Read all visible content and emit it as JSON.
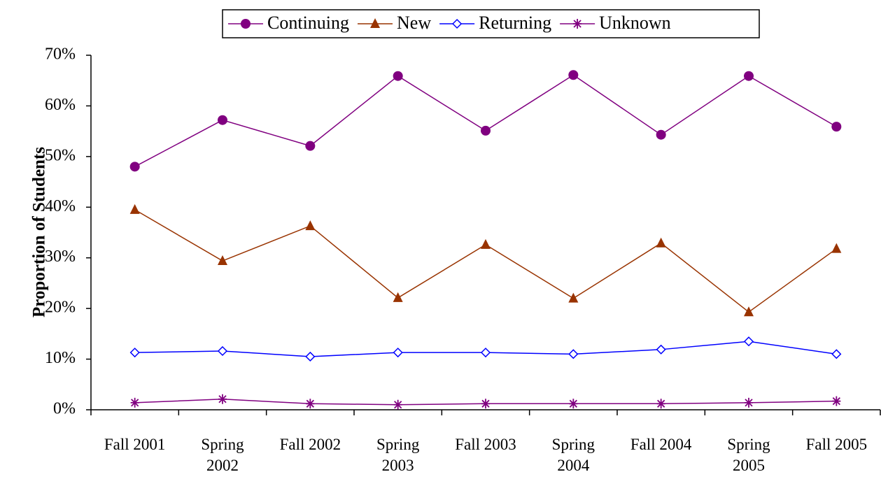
{
  "chart_data": {
    "type": "line",
    "y_label": "Proportion of Students",
    "categories": [
      "Fall 2001",
      "Spring 2002",
      "Fall 2002",
      "Spring 2003",
      "Fall 2003",
      "Spring 2004",
      "Fall 2004",
      "Spring 2005",
      "Fall 2005"
    ],
    "series": [
      {
        "name": "Continuing",
        "color": "#800080",
        "marker": "circle",
        "values": [
          48.0,
          57.2,
          52.1,
          65.9,
          55.1,
          66.1,
          54.3,
          65.9,
          55.9
        ]
      },
      {
        "name": "New",
        "color": "#993300",
        "marker": "triangle",
        "values": [
          39.5,
          29.4,
          36.3,
          22.1,
          32.6,
          22.0,
          32.9,
          19.3,
          31.8
        ]
      },
      {
        "name": "Returning",
        "color": "#0000ff",
        "marker": "diamond",
        "values": [
          11.3,
          11.6,
          10.5,
          11.3,
          11.3,
          11.0,
          11.9,
          13.5,
          11.0
        ]
      },
      {
        "name": "Unknown",
        "color": "#800080",
        "marker": "star",
        "values": [
          1.4,
          2.1,
          1.2,
          1.0,
          1.2,
          1.2,
          1.2,
          1.4,
          1.7
        ]
      }
    ],
    "ylim": [
      0,
      70
    ],
    "yticks": [
      {
        "value": 0,
        "label": "0%"
      },
      {
        "value": 10,
        "label": "10%"
      },
      {
        "value": 20,
        "label": "20%"
      },
      {
        "value": 30,
        "label": "30%"
      },
      {
        "value": 40,
        "label": "40%"
      },
      {
        "value": 50,
        "label": "50%"
      },
      {
        "value": 60,
        "label": "60%"
      },
      {
        "value": 70,
        "label": "70%"
      }
    ],
    "legend": "top"
  }
}
